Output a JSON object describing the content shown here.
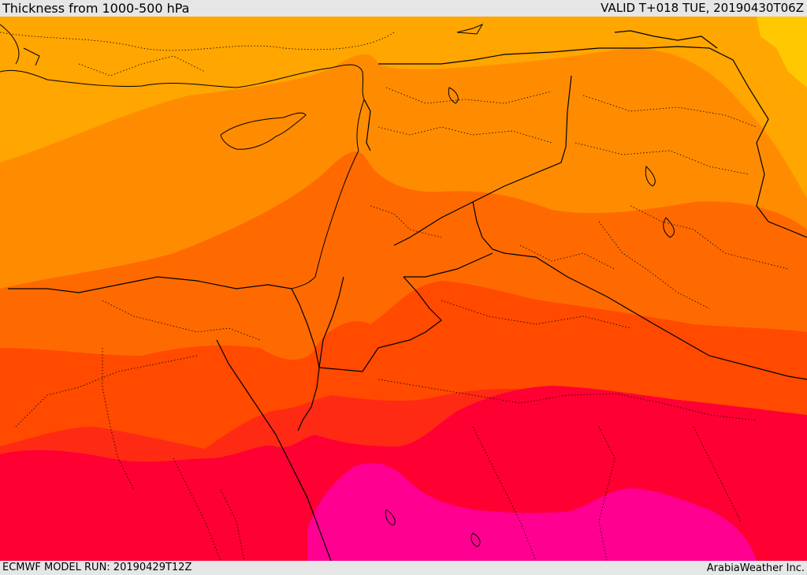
{
  "header": {
    "title": "Thickness from 1000-500 hPa",
    "valid": "VALID T+018 TUE, 20190430T06Z"
  },
  "footer": {
    "model_run": "ECMWF MODEL RUN: 20190429T12Z",
    "credit": "ArabiaWeather Inc."
  },
  "map": {
    "field": "1000-500 hPa thickness",
    "colors": {
      "band_1": "#ffa600",
      "band_2": "#ff8c00",
      "band_3": "#ff6a00",
      "band_4": "#ff4a00",
      "band_5": "#ff2a14",
      "band_6": "#ff0033",
      "band_7": "#ff0090",
      "band_8": "#ffc800",
      "borders": "#000000"
    }
  }
}
